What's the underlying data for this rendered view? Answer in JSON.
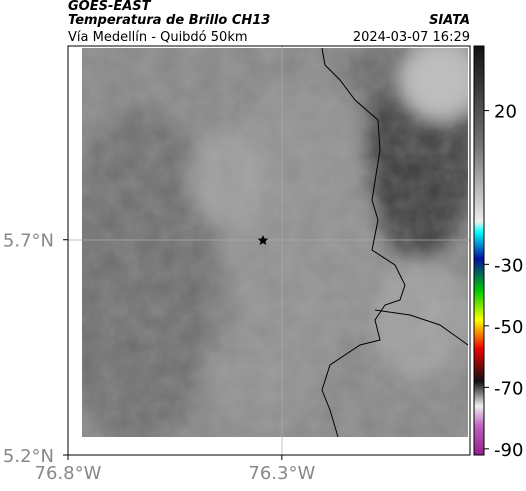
{
  "header": {
    "source": "GOES-EAST",
    "product": "Temperatura de Brillo CH13",
    "region": "Vía Medellín - Quibdó 50km",
    "agency": "SIATA",
    "timestamp": "2024-03-07 16:29"
  },
  "map": {
    "lonlim": [
      -76.8,
      -75.86
    ],
    "latlim": [
      5.2,
      6.15
    ],
    "lat_ticks": [
      {
        "value": 5.7,
        "label": "5.7°N"
      },
      {
        "value": 5.2,
        "label": "5.2°N"
      }
    ],
    "lon_ticks": [
      {
        "value": -76.8,
        "label": "76.8°W"
      },
      {
        "value": -76.3,
        "label": "76.3°W"
      }
    ],
    "colorbar": {
      "clim": [
        -92,
        41
      ],
      "ticks": [
        20,
        -30,
        -50,
        -70,
        -90
      ]
    }
  }
}
